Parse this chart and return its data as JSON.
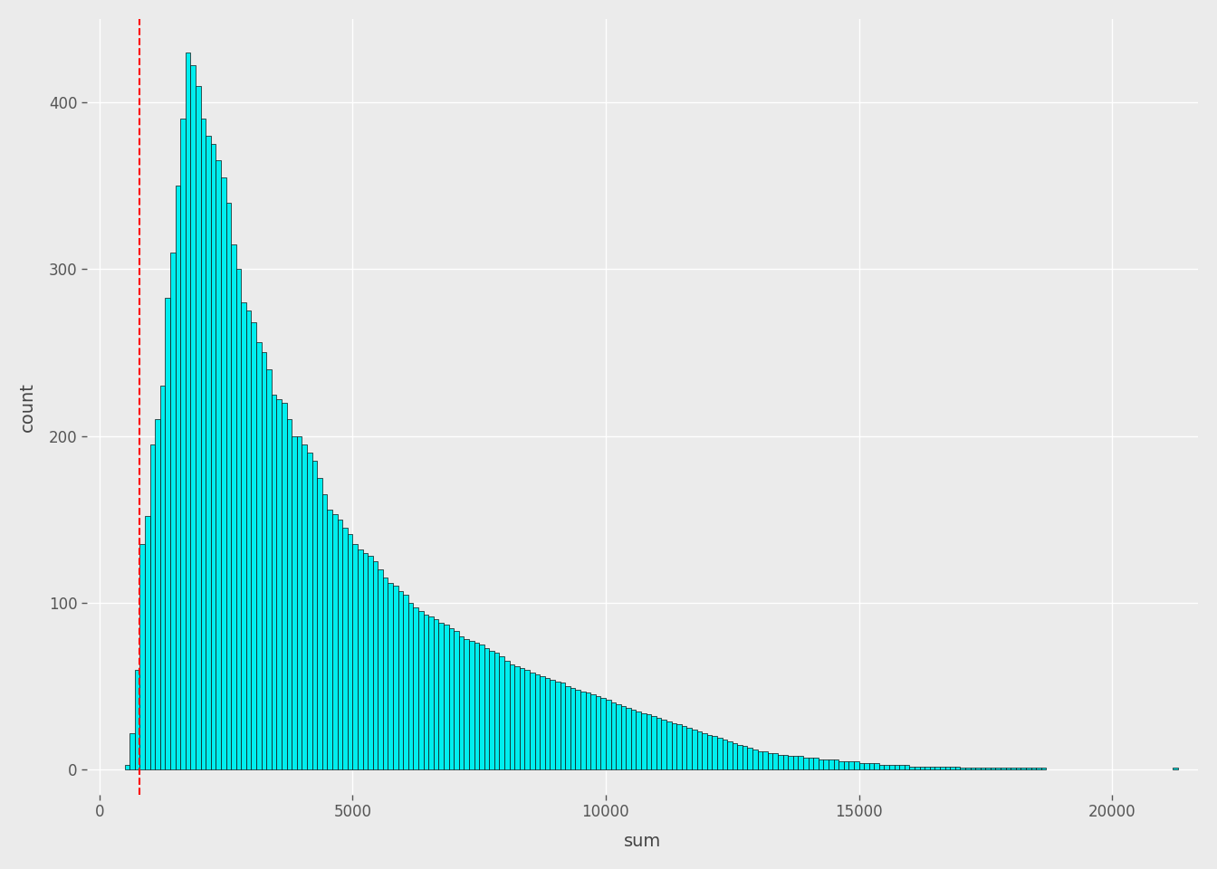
{
  "title": "",
  "xlabel": "sum",
  "ylabel": "count",
  "bar_color": "#00EEEE",
  "bar_edgecolor": "#111111",
  "vline_x": 800,
  "vline_color": "#FF0000",
  "vline_style": "--",
  "background_color": "#EBEBEB",
  "grid_color": "#FFFFFF",
  "xlim": [
    -250,
    21700
  ],
  "ylim": [
    -15,
    450
  ],
  "xticks": [
    0,
    5000,
    10000,
    15000,
    20000
  ],
  "yticks": [
    0,
    100,
    200,
    300,
    400
  ],
  "bin_width": 100,
  "bar_counts": [
    0,
    0,
    0,
    0,
    0,
    3,
    22,
    60,
    135,
    152,
    195,
    210,
    230,
    283,
    310,
    350,
    390,
    430,
    422,
    410,
    390,
    380,
    375,
    365,
    355,
    340,
    315,
    300,
    280,
    275,
    268,
    256,
    250,
    240,
    225,
    222,
    220,
    210,
    200,
    200,
    195,
    190,
    185,
    175,
    165,
    156,
    153,
    150,
    145,
    141,
    135,
    132,
    130,
    128,
    125,
    120,
    115,
    112,
    110,
    107,
    105,
    100,
    97,
    95,
    93,
    92,
    90,
    88,
    87,
    85,
    83,
    80,
    78,
    77,
    76,
    75,
    73,
    71,
    70,
    68,
    65,
    63,
    62,
    61,
    60,
    58,
    57,
    56,
    55,
    54,
    53,
    52,
    50,
    49,
    48,
    47,
    46,
    45,
    44,
    43,
    42,
    40,
    39,
    38,
    37,
    36,
    35,
    34,
    33,
    32,
    31,
    30,
    29,
    28,
    27,
    26,
    25,
    24,
    23,
    22,
    21,
    20,
    19,
    18,
    17,
    16,
    15,
    14,
    13,
    12,
    11,
    11,
    10,
    10,
    9,
    9,
    8,
    8,
    8,
    7,
    7,
    7,
    6,
    6,
    6,
    6,
    5,
    5,
    5,
    5,
    4,
    4,
    4,
    4,
    3,
    3,
    3,
    3,
    3,
    3,
    2,
    2,
    2,
    2,
    2,
    2,
    2,
    2,
    2,
    2,
    1,
    1,
    1,
    1,
    1,
    1,
    1,
    1,
    1,
    1,
    1,
    1,
    1,
    1,
    1,
    1,
    1,
    0,
    0,
    0,
    0,
    0,
    0,
    0,
    0,
    0,
    0,
    0,
    0,
    0,
    0,
    0,
    0,
    0,
    0,
    0,
    0,
    0,
    0,
    0,
    0,
    0,
    1
  ]
}
